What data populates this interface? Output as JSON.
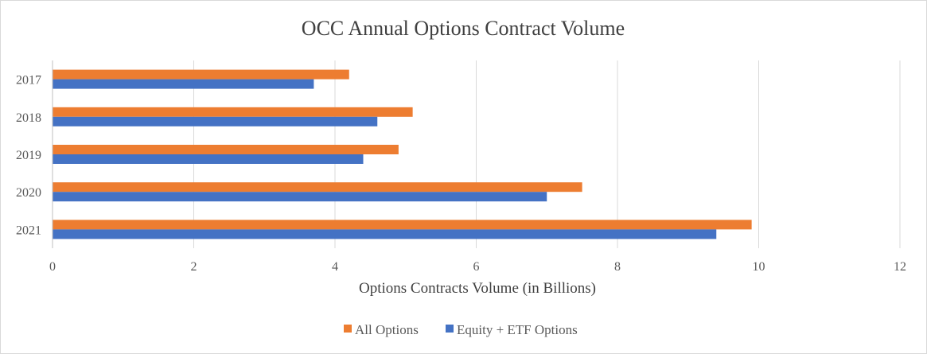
{
  "chart_data": {
    "type": "bar",
    "orientation": "horizontal",
    "title": "OCC Annual Options Contract Volume",
    "xlabel": "Options Contracts Volume (in Billions)",
    "ylabel": "",
    "categories": [
      "2017",
      "2018",
      "2019",
      "2020",
      "2021"
    ],
    "series": [
      {
        "name": "All Options",
        "color": "#ed7d31",
        "values": [
          4.2,
          5.1,
          4.9,
          7.5,
          9.9
        ]
      },
      {
        "name": "Equity + ETF Options",
        "color": "#4472c4",
        "values": [
          3.7,
          4.6,
          4.4,
          7.0,
          9.4
        ]
      }
    ],
    "xlim": [
      0,
      12
    ],
    "xticks": [
      "0",
      "2",
      "4",
      "6",
      "8",
      "10",
      "12"
    ],
    "grid": true,
    "legend_position": "bottom"
  }
}
